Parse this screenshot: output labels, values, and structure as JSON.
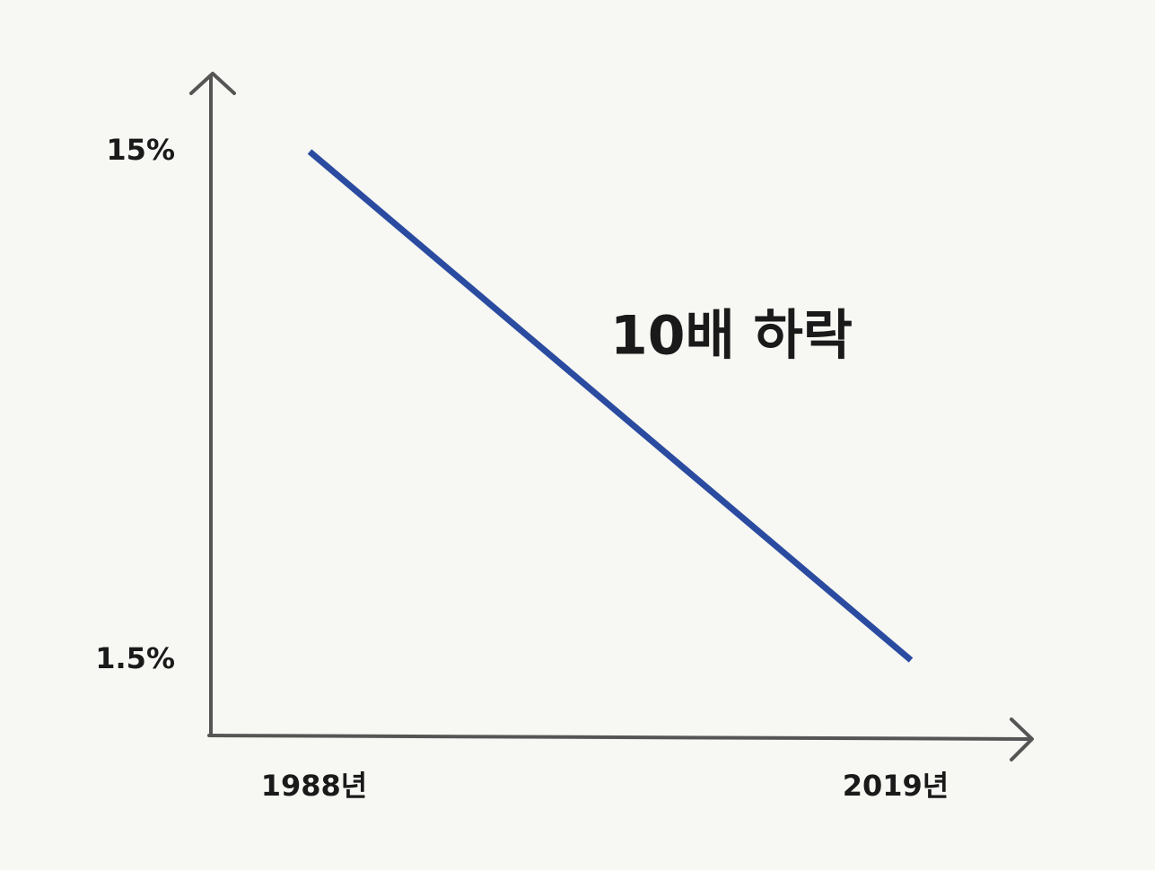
{
  "chart_data": {
    "type": "line",
    "categories": [
      "1988년",
      "2019년"
    ],
    "series": [
      {
        "name": null,
        "color": "#2a4ba0",
        "values": [
          15,
          1.5
        ]
      }
    ],
    "ylim": [
      -0.5,
      17
    ],
    "yticks": [
      {
        "value": 15,
        "label": "15%"
      },
      {
        "value": 1.5,
        "label": "1.5%"
      }
    ],
    "grid": false,
    "annotation": "10배 하락",
    "annotation_color": "#2452b8"
  }
}
